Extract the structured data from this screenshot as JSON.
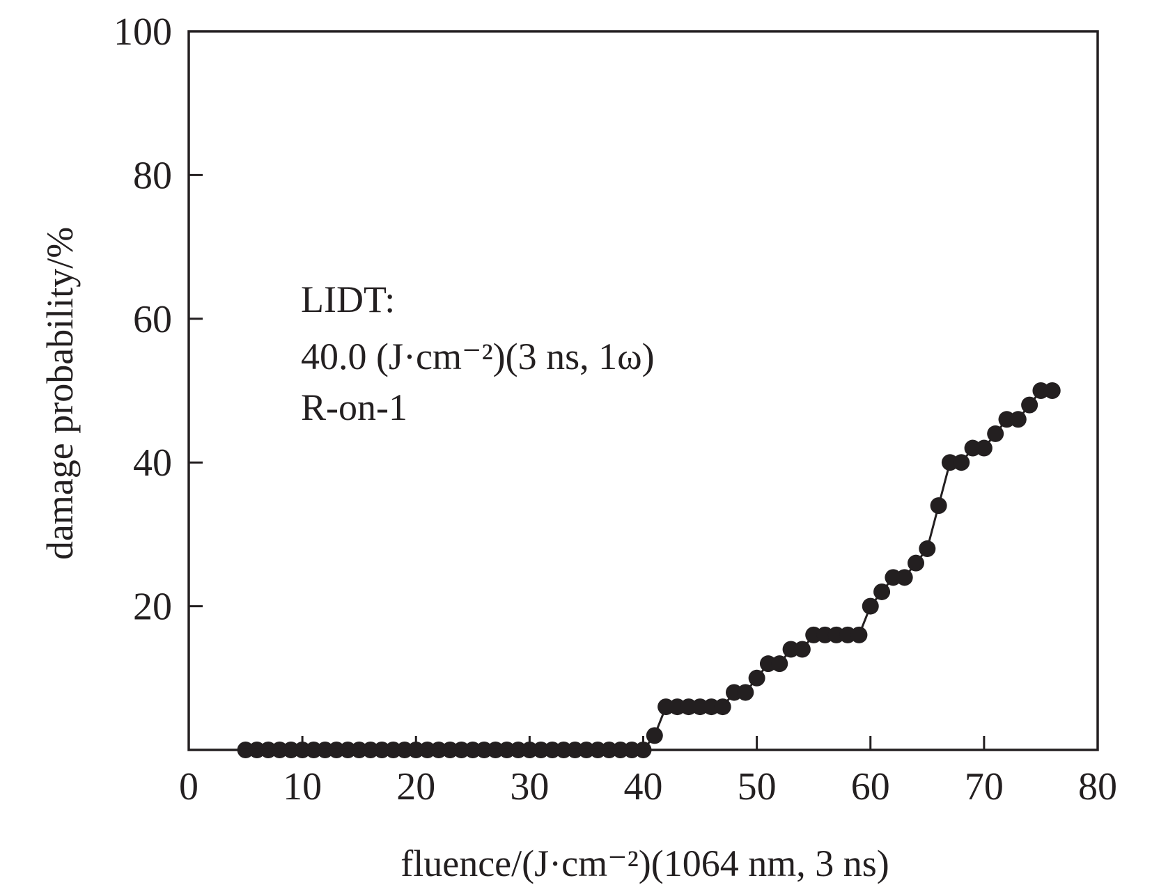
{
  "chart_data": {
    "type": "line",
    "title": "",
    "xlabel": "fluence/(J·cm⁻²)(1064 nm, 3 ns)",
    "ylabel": "damage probability/%",
    "xlim": [
      0,
      80
    ],
    "ylim": [
      0,
      100
    ],
    "xticks": [
      0,
      10,
      20,
      30,
      40,
      50,
      60,
      70,
      80
    ],
    "yticks": [
      20,
      40,
      60,
      80,
      100
    ],
    "grid": false,
    "annotation": {
      "lines": [
        "LIDT:",
        "40.0 (J·cm⁻²)(3 ns, 1ω)",
        "R-on-1"
      ]
    },
    "colors": {
      "marker": "#231f20",
      "axis": "#231f20"
    },
    "series": [
      {
        "marker": "circle",
        "x": [
          5,
          6,
          7,
          8,
          9,
          10,
          11,
          12,
          13,
          14,
          15,
          16,
          17,
          18,
          19,
          20,
          21,
          22,
          23,
          24,
          25,
          26,
          27,
          28,
          29,
          30,
          31,
          32,
          33,
          34,
          35,
          36,
          37,
          38,
          39,
          40,
          41,
          42,
          43,
          44,
          45,
          46,
          47,
          48,
          49,
          50,
          51,
          52,
          53,
          54,
          55,
          56,
          57,
          58,
          59,
          60,
          61,
          62,
          63,
          64,
          65,
          66,
          67,
          68,
          69,
          70,
          71,
          72,
          73,
          74,
          75,
          76
        ],
        "y": [
          0,
          0,
          0,
          0,
          0,
          0,
          0,
          0,
          0,
          0,
          0,
          0,
          0,
          0,
          0,
          0,
          0,
          0,
          0,
          0,
          0,
          0,
          0,
          0,
          0,
          0,
          0,
          0,
          0,
          0,
          0,
          0,
          0,
          0,
          0,
          0,
          2,
          6,
          6,
          6,
          6,
          6,
          6,
          8,
          8,
          10,
          12,
          12,
          14,
          14,
          16,
          16,
          16,
          16,
          16,
          20,
          22,
          24,
          24,
          26,
          28,
          34,
          40,
          40,
          42,
          42,
          44,
          46,
          46,
          48,
          50,
          50
        ]
      }
    ]
  }
}
